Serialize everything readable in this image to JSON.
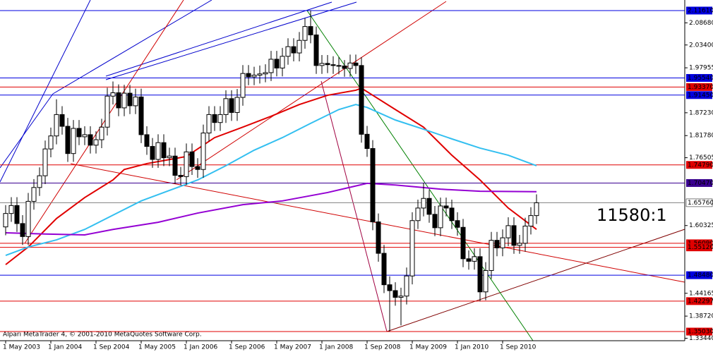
{
  "chart_data": {
    "type": "candlestick",
    "footer": "Alpari MetaTrader 4, © 2001-2010 MetaQuotes Software Corp.",
    "annotation": "11580:1",
    "annotation_color": "#3a9ee0",
    "up_color": "#ffffff",
    "down_color": "#000000",
    "categories": [
      "1 May 2003",
      null,
      null,
      null,
      null,
      null,
      null,
      null,
      "1 Jan 2004",
      null,
      null,
      null,
      null,
      null,
      null,
      null,
      "1 Sep 2004",
      null,
      null,
      null,
      null,
      null,
      null,
      null,
      "1 May 2005",
      null,
      null,
      null,
      null,
      null,
      null,
      null,
      "1 Jan 2006",
      null,
      null,
      null,
      null,
      null,
      null,
      null,
      "1 Sep 2006",
      null,
      null,
      null,
      null,
      null,
      null,
      null,
      "1 May 2007",
      null,
      null,
      null,
      null,
      null,
      null,
      null,
      "1 Jan 2008",
      null,
      null,
      null,
      null,
      null,
      null,
      null,
      "1 Sep 2008",
      null,
      null,
      null,
      null,
      null,
      null,
      null,
      "1 May 2009",
      null,
      null,
      null,
      null,
      null,
      null,
      null,
      "1 Jan 2010",
      null,
      null,
      null,
      null,
      null,
      null,
      null,
      "1 Sep 2010",
      null,
      null,
      null,
      null,
      null,
      null
    ],
    "open": [
      1.6,
      1.632,
      1.651,
      1.608,
      1.577,
      1.661,
      1.694,
      1.722,
      1.786,
      1.817,
      1.868,
      1.84,
      1.775,
      1.835,
      1.815,
      1.82,
      1.795,
      1.808,
      1.838,
      1.912,
      1.92,
      1.884,
      1.919,
      1.889,
      1.91,
      1.82,
      1.792,
      1.761,
      1.801,
      1.765,
      1.769,
      1.723,
      1.72,
      1.779,
      1.744,
      1.737,
      1.824,
      1.868,
      1.849,
      1.868,
      1.906,
      1.873,
      1.909,
      1.966,
      1.958,
      1.962,
      1.965,
      1.968,
      2.0,
      1.979,
      2.007,
      2.03,
      2.015,
      2.045,
      2.078,
      2.058,
      1.985,
      1.99,
      1.987,
      1.985,
      1.984,
      1.978,
      1.991,
      1.985,
      1.821,
      1.787,
      1.612,
      1.537,
      1.462,
      1.448,
      1.432,
      1.435,
      1.483,
      1.615,
      1.645,
      1.668,
      1.63,
      1.598,
      1.65,
      1.645,
      1.615,
      1.599,
      1.524,
      1.518,
      1.529,
      1.445,
      1.496,
      1.568,
      1.55,
      1.574,
      1.603,
      1.556,
      1.561,
      1.602,
      1.627
    ],
    "high": [
      1.652,
      1.671,
      1.671,
      1.628,
      1.681,
      1.714,
      1.742,
      1.806,
      1.837,
      1.9044,
      1.888,
      1.86,
      1.855,
      1.855,
      1.84,
      1.84,
      1.828,
      1.858,
      1.932,
      1.947,
      1.94,
      1.939,
      1.939,
      1.93,
      1.93,
      1.84,
      1.812,
      1.821,
      1.821,
      1.789,
      1.789,
      1.743,
      1.799,
      1.799,
      1.764,
      1.844,
      1.888,
      1.888,
      1.888,
      1.926,
      1.926,
      1.929,
      1.986,
      1.986,
      1.982,
      1.985,
      1.988,
      2.02,
      2.02,
      2.027,
      2.05,
      2.05,
      2.065,
      2.098,
      2.1161,
      2.078,
      2.01,
      2.01,
      2.007,
      2.005,
      1.998,
      2.011,
      2.011,
      2.005,
      1.841,
      1.807,
      1.632,
      1.557,
      1.482,
      1.468,
      1.455,
      1.503,
      1.635,
      1.665,
      1.7047,
      1.688,
      1.65,
      1.67,
      1.67,
      1.665,
      1.635,
      1.619,
      1.544,
      1.549,
      1.549,
      1.516,
      1.588,
      1.588,
      1.594,
      1.623,
      1.623,
      1.581,
      1.622,
      1.647,
      1.6776
    ],
    "low": [
      1.58,
      1.612,
      1.588,
      1.557,
      1.557,
      1.641,
      1.674,
      1.702,
      1.766,
      1.797,
      1.82,
      1.755,
      1.755,
      1.795,
      1.795,
      1.775,
      1.775,
      1.788,
      1.818,
      1.892,
      1.864,
      1.864,
      1.869,
      1.869,
      1.8,
      1.772,
      1.741,
      1.741,
      1.745,
      1.745,
      1.703,
      1.7,
      1.7,
      1.724,
      1.717,
      1.717,
      1.804,
      1.829,
      1.829,
      1.848,
      1.853,
      1.853,
      1.889,
      1.938,
      1.938,
      1.942,
      1.945,
      1.948,
      1.959,
      1.959,
      1.987,
      1.995,
      1.995,
      2.025,
      2.038,
      1.965,
      1.965,
      1.967,
      1.965,
      1.964,
      1.958,
      1.958,
      1.965,
      1.801,
      1.767,
      1.592,
      1.517,
      1.442,
      1.3503,
      1.412,
      1.365,
      1.415,
      1.463,
      1.595,
      1.625,
      1.61,
      1.578,
      1.578,
      1.625,
      1.595,
      1.579,
      1.504,
      1.498,
      1.498,
      1.423,
      1.425,
      1.476,
      1.53,
      1.53,
      1.554,
      1.536,
      1.536,
      1.541,
      1.582,
      1.607
    ],
    "close": [
      1.632,
      1.651,
      1.608,
      1.577,
      1.661,
      1.694,
      1.722,
      1.786,
      1.817,
      1.868,
      1.84,
      1.775,
      1.835,
      1.815,
      1.82,
      1.795,
      1.808,
      1.838,
      1.912,
      1.92,
      1.884,
      1.919,
      1.889,
      1.91,
      1.82,
      1.792,
      1.761,
      1.801,
      1.765,
      1.769,
      1.723,
      1.72,
      1.779,
      1.744,
      1.737,
      1.824,
      1.868,
      1.849,
      1.868,
      1.906,
      1.873,
      1.909,
      1.966,
      1.958,
      1.962,
      1.965,
      1.968,
      2.0,
      1.979,
      2.007,
      2.03,
      2.015,
      2.045,
      2.078,
      2.058,
      1.985,
      1.99,
      1.987,
      1.985,
      1.984,
      1.978,
      1.991,
      1.985,
      1.821,
      1.787,
      1.612,
      1.537,
      1.462,
      1.448,
      1.432,
      1.435,
      1.483,
      1.615,
      1.645,
      1.668,
      1.63,
      1.598,
      1.65,
      1.645,
      1.615,
      1.599,
      1.524,
      1.518,
      1.529,
      1.445,
      1.496,
      1.568,
      1.55,
      1.574,
      1.603,
      1.556,
      1.561,
      1.602,
      1.627,
      1.6576
    ],
    "lines": [
      {
        "color": "#e00000",
        "x": [
          0,
          4,
          9,
          14,
          19,
          21,
          25,
          32,
          37,
          42,
          47,
          52,
          57,
          62,
          63,
          65,
          69,
          74,
          79,
          84,
          89,
          94
        ],
        "values": [
          1.51,
          1.552,
          1.62,
          1.67,
          1.712,
          1.737,
          1.751,
          1.768,
          1.813,
          1.838,
          1.864,
          1.892,
          1.914,
          1.926,
          1.931,
          1.914,
          1.88,
          1.838,
          1.771,
          1.712,
          1.645,
          1.594
        ]
      },
      {
        "color": "#33bff0",
        "x": [
          0,
          4,
          9,
          14,
          19,
          24,
          29,
          34,
          39,
          44,
          49,
          54,
          59,
          62,
          64,
          69,
          74,
          79,
          84,
          89,
          94
        ],
        "values": [
          1.532,
          1.552,
          1.569,
          1.594,
          1.628,
          1.662,
          1.687,
          1.712,
          1.746,
          1.783,
          1.813,
          1.847,
          1.88,
          1.892,
          1.885,
          1.855,
          1.833,
          1.81,
          1.788,
          1.771,
          1.746
        ]
      },
      {
        "color": "#9400d3",
        "x": [
          0,
          7,
          14,
          19,
          27,
          34,
          42,
          49,
          57,
          64,
          69,
          77,
          84,
          94
        ],
        "values": [
          1.586,
          1.583,
          1.581,
          1.594,
          1.611,
          1.633,
          1.653,
          1.662,
          1.682,
          1.704,
          1.7,
          1.69,
          1.685,
          1.684
        ]
      }
    ],
    "levels": [
      {
        "value": 2.1161,
        "label": "2.11610",
        "color": "#0000e0"
      },
      {
        "value": 1.9554,
        "label": "1.95540",
        "color": "#0000e0"
      },
      {
        "value": 1.9337,
        "label": "1.93370",
        "color": "#e00000"
      },
      {
        "value": 1.9145,
        "label": "1.91450",
        "color": "#0000e0"
      },
      {
        "value": 1.7479,
        "label": "1.74790",
        "color": "#e00000"
      },
      {
        "value": 1.7047,
        "label": "1.70470",
        "color": "#3a0090"
      },
      {
        "value": 1.6576,
        "label": "1.65760",
        "color": "#808080"
      },
      {
        "value": 1.5609,
        "label": "1.56090",
        "color": "#e00000"
      },
      {
        "value": 1.5512,
        "label": "1.55120",
        "color": "#e00000"
      },
      {
        "value": 1.4848,
        "label": "1.48480",
        "color": "#0000e0"
      },
      {
        "value": 1.42297,
        "label": "1.42297",
        "color": "#e00000"
      },
      {
        "value": 1.3503,
        "label": "1.35030",
        "color": "#e00000"
      }
    ],
    "ylim": [
      1.3285,
      2.1413
    ],
    "yticks": [
      {
        "value": 2.0868,
        "label": "2.08680"
      },
      {
        "value": 2.034,
        "label": "2.03400"
      },
      1.97955,
      {
        "value": 1.8723,
        "label": "1.87230"
      },
      {
        "value": 1.8178,
        "label": "1.81780"
      },
      1.76505,
      1.60325,
      1.44165,
      {
        "value": 1.3872,
        "label": "1.38720"
      },
      {
        "value": 1.3344,
        "label": "1.33440"
      }
    ]
  }
}
